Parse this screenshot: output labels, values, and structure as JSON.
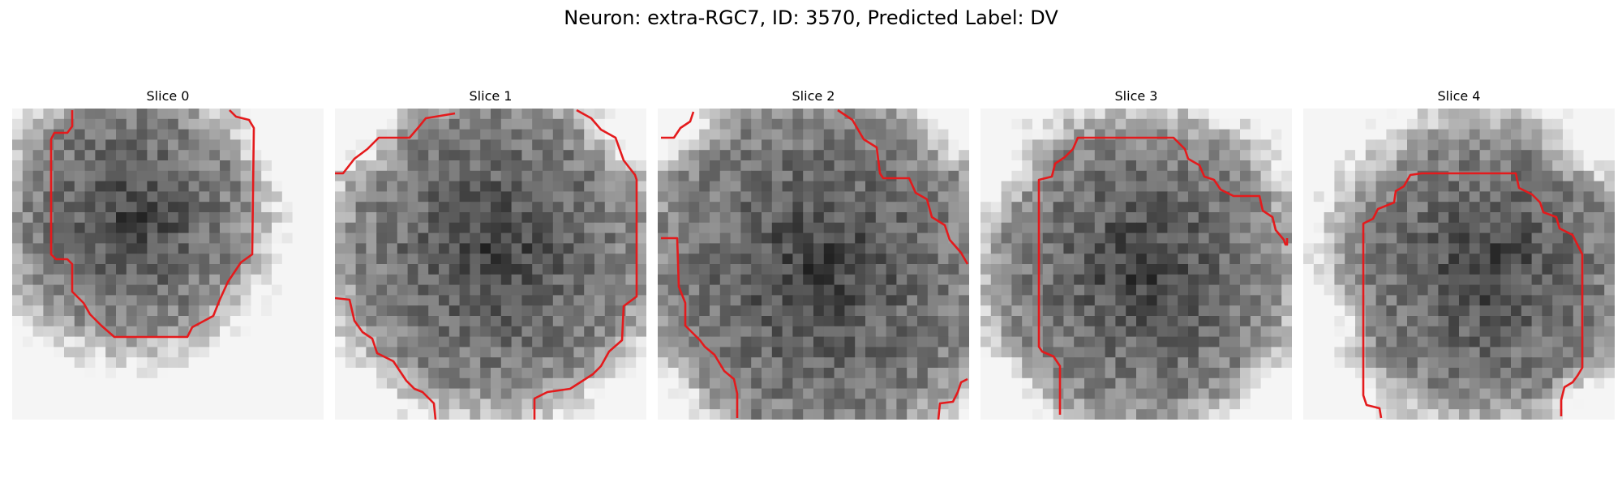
{
  "figure": {
    "title": "Neuron: extra-RGC7, ID: 3570, Predicted Label: DV",
    "contour_color": "#e41a1c",
    "colormap": "gray"
  },
  "slices": [
    {
      "title": "Slice 0"
    },
    {
      "title": "Slice 1"
    },
    {
      "title": "Slice 2"
    },
    {
      "title": "Slice 3"
    },
    {
      "title": "Slice 4"
    }
  ]
}
